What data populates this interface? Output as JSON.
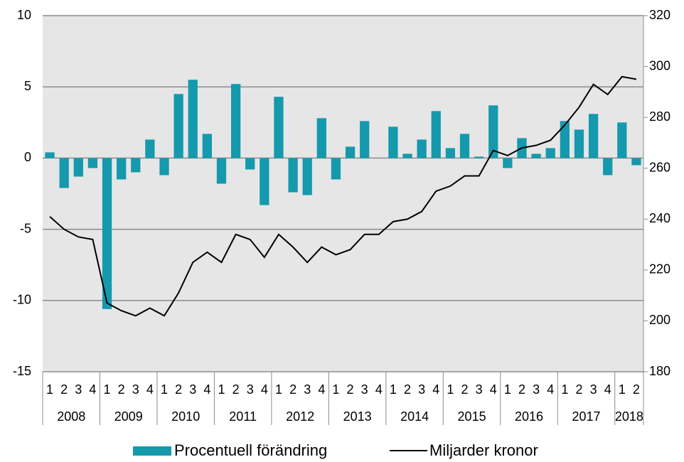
{
  "chart_data": {
    "type": "bar+line",
    "categories": [
      "1",
      "2",
      "3",
      "4",
      "1",
      "2",
      "3",
      "4",
      "1",
      "2",
      "3",
      "4",
      "1",
      "2",
      "3",
      "4",
      "1",
      "2",
      "3",
      "4",
      "1",
      "2",
      "3",
      "4",
      "1",
      "2",
      "3",
      "4",
      "1",
      "2",
      "3",
      "4",
      "1",
      "2",
      "3",
      "4",
      "1",
      "2",
      "3",
      "4",
      "1",
      "2"
    ],
    "years": [
      "2008",
      "2009",
      "2010",
      "2011",
      "2012",
      "2013",
      "2014",
      "2015",
      "2016",
      "2017",
      "2018"
    ],
    "series": [
      {
        "name": "Procentuell förändring",
        "type": "bar",
        "color": "#1599ad",
        "values": [
          0.4,
          -2.1,
          -1.3,
          -0.7,
          -10.6,
          -1.5,
          -1.0,
          1.3,
          -1.2,
          4.5,
          5.5,
          1.7,
          -1.8,
          5.2,
          -0.8,
          -3.3,
          4.3,
          -2.4,
          -2.6,
          2.8,
          -1.5,
          0.8,
          2.6,
          0.0,
          2.2,
          0.3,
          1.3,
          3.3,
          0.7,
          1.7,
          0.1,
          3.7,
          -0.7,
          1.4,
          0.3,
          0.7,
          2.6,
          2.0,
          3.1,
          -1.2,
          2.5,
          -0.5
        ]
      },
      {
        "name": "Miljarder kronor",
        "type": "line",
        "axis": "y2",
        "color": "#000000",
        "values": [
          241,
          236,
          233,
          232,
          207,
          204,
          202,
          205,
          202,
          211,
          223,
          227,
          223,
          234,
          232,
          225,
          234,
          229,
          223,
          229,
          226,
          228,
          234,
          234,
          239,
          240,
          243,
          251,
          253,
          257,
          257,
          267,
          265,
          268,
          269,
          271,
          277,
          284,
          293,
          289,
          296,
          295
        ]
      }
    ],
    "ylim": [
      -15,
      10
    ],
    "yticks": [
      -15,
      -10,
      -5,
      0,
      5,
      10
    ],
    "y2lim": [
      180,
      320
    ],
    "y2ticks": [
      180,
      200,
      220,
      240,
      260,
      280,
      300,
      320
    ],
    "grid": true,
    "legend": "bottom"
  }
}
